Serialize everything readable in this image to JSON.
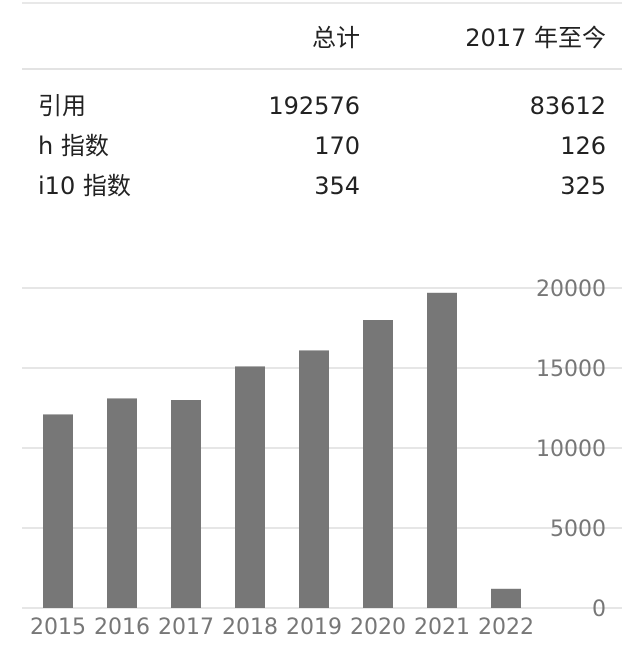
{
  "stats_table": {
    "columns": [
      "总计",
      "2017 年至今"
    ],
    "rows": [
      {
        "label": "引用",
        "total": "192576",
        "since": "83612"
      },
      {
        "label": "h 指数",
        "total": "170",
        "since": "126"
      },
      {
        "label": "i10 指数",
        "total": "354",
        "since": "325"
      }
    ]
  },
  "colors": {
    "bar": "#777777",
    "grid": "#e6e6e6",
    "axis_text": "#777777",
    "text": "#222222"
  },
  "chart_data": {
    "type": "bar",
    "categories": [
      "2015",
      "2016",
      "2017",
      "2018",
      "2019",
      "2020",
      "2021",
      "2022"
    ],
    "values": [
      12100,
      13100,
      13000,
      15100,
      16100,
      18000,
      19700,
      1200
    ],
    "yticks": [
      0,
      5000,
      10000,
      15000,
      20000
    ],
    "ylim": [
      0,
      20000
    ],
    "grid": true,
    "y_axis_side": "right",
    "title": "",
    "xlabel": "",
    "ylabel": ""
  }
}
